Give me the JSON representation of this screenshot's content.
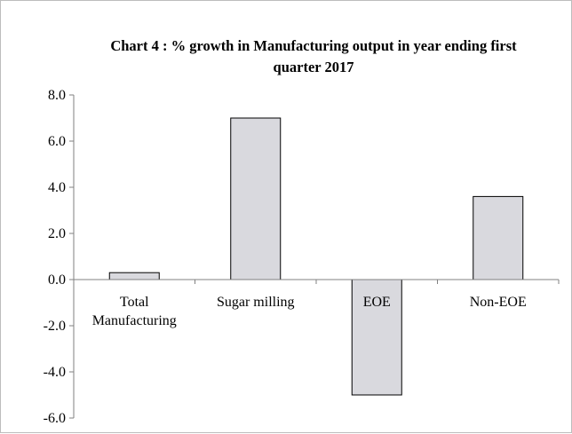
{
  "chart_data": {
    "type": "bar",
    "title_lines": [
      "Chart 4 : % growth in Manufacturing output in year ending first",
      "quarter 2017"
    ],
    "categories": [
      [
        "Total",
        "Manufacturing"
      ],
      [
        "Sugar milling"
      ],
      [
        "EOE"
      ],
      [
        "Non-EOE"
      ]
    ],
    "values": [
      0.3,
      7.0,
      -5.0,
      3.6
    ],
    "ylim": [
      -6.0,
      8.0
    ],
    "yticks": [
      8.0,
      6.0,
      4.0,
      2.0,
      0.0,
      -2.0,
      -4.0,
      -6.0
    ],
    "ytick_labels": [
      "8.0",
      "6.0",
      "4.0",
      "2.0",
      "0.0",
      "-2.0",
      "-4.0",
      "-6.0"
    ],
    "grid": false,
    "legend": "none",
    "colors": {
      "bar_fill": "#d9d9de",
      "bar_stroke": "#000000",
      "axis": "#808080"
    }
  }
}
